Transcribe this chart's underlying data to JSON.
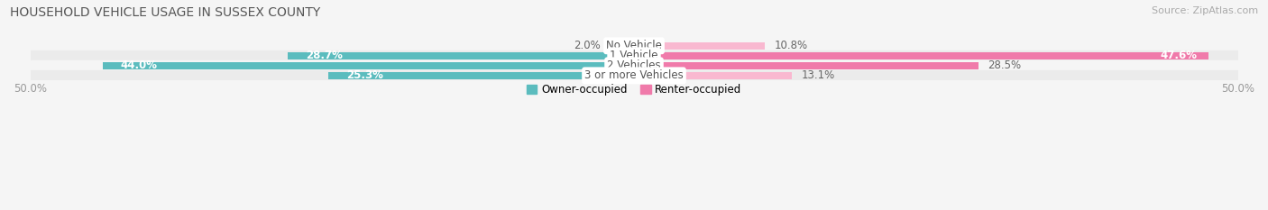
{
  "title": "HOUSEHOLD VEHICLE USAGE IN SUSSEX COUNTY",
  "source": "Source: ZipAtlas.com",
  "categories": [
    "No Vehicle",
    "1 Vehicle",
    "2 Vehicles",
    "3 or more Vehicles"
  ],
  "owner_values": [
    2.0,
    28.7,
    44.0,
    25.3
  ],
  "renter_values": [
    10.8,
    47.6,
    28.5,
    13.1
  ],
  "owner_color": "#5bbcbe",
  "renter_color": "#f07aaa",
  "renter_color_light": "#f9b8d0",
  "xlim": [
    -50,
    50
  ],
  "legend_owner": "Owner-occupied",
  "legend_renter": "Renter-occupied",
  "title_fontsize": 10,
  "source_fontsize": 8,
  "label_fontsize": 8.5,
  "tick_fontsize": 8.5,
  "bar_height": 0.72,
  "row_colors": [
    "#f0f0f0",
    "#e8e8e8",
    "#f0f0f0",
    "#e8e8e8"
  ]
}
